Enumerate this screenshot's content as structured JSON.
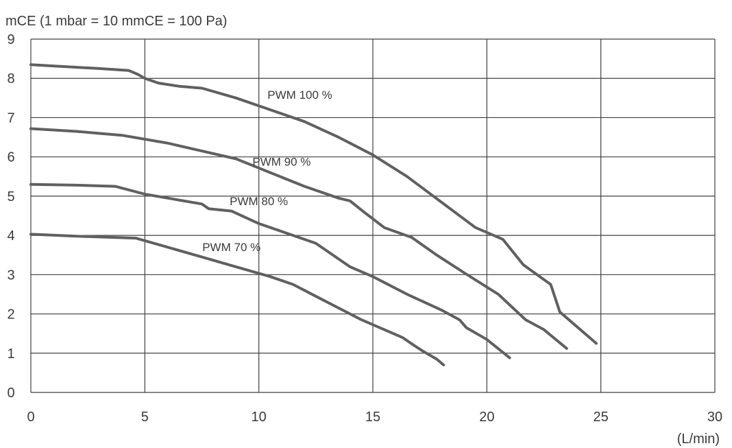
{
  "chart_data": {
    "type": "line",
    "ylabel": "mCE (1 mbar = 10 mmCE = 100 Pa)",
    "xlabel": "(L/min)",
    "xlim": [
      0,
      30
    ],
    "ylim": [
      0,
      9
    ],
    "xticks": [
      0,
      5,
      10,
      15,
      20,
      25,
      30
    ],
    "yticks": [
      0,
      1,
      2,
      3,
      4,
      5,
      6,
      7,
      8,
      9
    ],
    "grid": true,
    "line_color": "#606060",
    "series": [
      {
        "name": "PWM 100 %",
        "x": [
          0,
          1.5,
          3,
          4.3,
          4.7,
          5,
          5.6,
          6.5,
          7.5,
          9,
          10.5,
          12,
          13.5,
          15,
          16.5,
          18,
          19.5,
          20.7,
          21.6,
          22.8,
          23.2,
          24.8
        ],
        "y": [
          8.35,
          8.3,
          8.25,
          8.2,
          8.1,
          8.0,
          7.88,
          7.8,
          7.75,
          7.5,
          7.2,
          6.9,
          6.5,
          6.05,
          5.5,
          4.85,
          4.2,
          3.9,
          3.25,
          2.75,
          2.05,
          1.25
        ]
      },
      {
        "name": "PWM 90 %",
        "x": [
          0,
          2,
          4,
          6,
          7.5,
          9,
          10.5,
          12,
          13.5,
          14,
          14.6,
          15.5,
          16.7,
          17.8,
          19,
          20.5,
          21.7,
          22.5,
          23.5
        ],
        "y": [
          6.72,
          6.65,
          6.55,
          6.35,
          6.15,
          5.95,
          5.6,
          5.25,
          4.95,
          4.88,
          4.6,
          4.2,
          3.95,
          3.5,
          3.05,
          2.5,
          1.85,
          1.6,
          1.12
        ]
      },
      {
        "name": "PWM 80 %",
        "x": [
          0,
          2,
          3.7,
          5,
          6.5,
          7.5,
          7.8,
          8.8,
          10,
          11.5,
          12.5,
          14,
          15,
          16.5,
          18,
          18.8,
          19.1,
          20,
          21
        ],
        "y": [
          5.3,
          5.28,
          5.25,
          5.05,
          4.9,
          4.8,
          4.68,
          4.62,
          4.3,
          4.0,
          3.8,
          3.2,
          2.95,
          2.5,
          2.1,
          1.85,
          1.65,
          1.35,
          0.88
        ]
      },
      {
        "name": "PWM 70 %",
        "x": [
          0,
          2,
          4.6,
          6,
          7.5,
          9,
          10.5,
          11.5,
          12.5,
          13.5,
          14.5,
          15.5,
          16.3,
          16.8,
          17.2,
          17.8,
          18.1
        ],
        "y": [
          4.03,
          3.98,
          3.93,
          3.7,
          3.45,
          3.2,
          2.95,
          2.75,
          2.45,
          2.15,
          1.85,
          1.6,
          1.4,
          1.2,
          1.05,
          0.85,
          0.7
        ]
      }
    ],
    "annotations": [
      {
        "text": "PWM 100 %",
        "x": 11.8,
        "y": 7.48
      },
      {
        "text": "PWM 90 %",
        "x": 11.0,
        "y": 5.78
      },
      {
        "text": "PWM 80 %",
        "x": 10.0,
        "y": 4.77
      },
      {
        "text": "PWM 70 %",
        "x": 8.8,
        "y": 3.6
      }
    ]
  }
}
